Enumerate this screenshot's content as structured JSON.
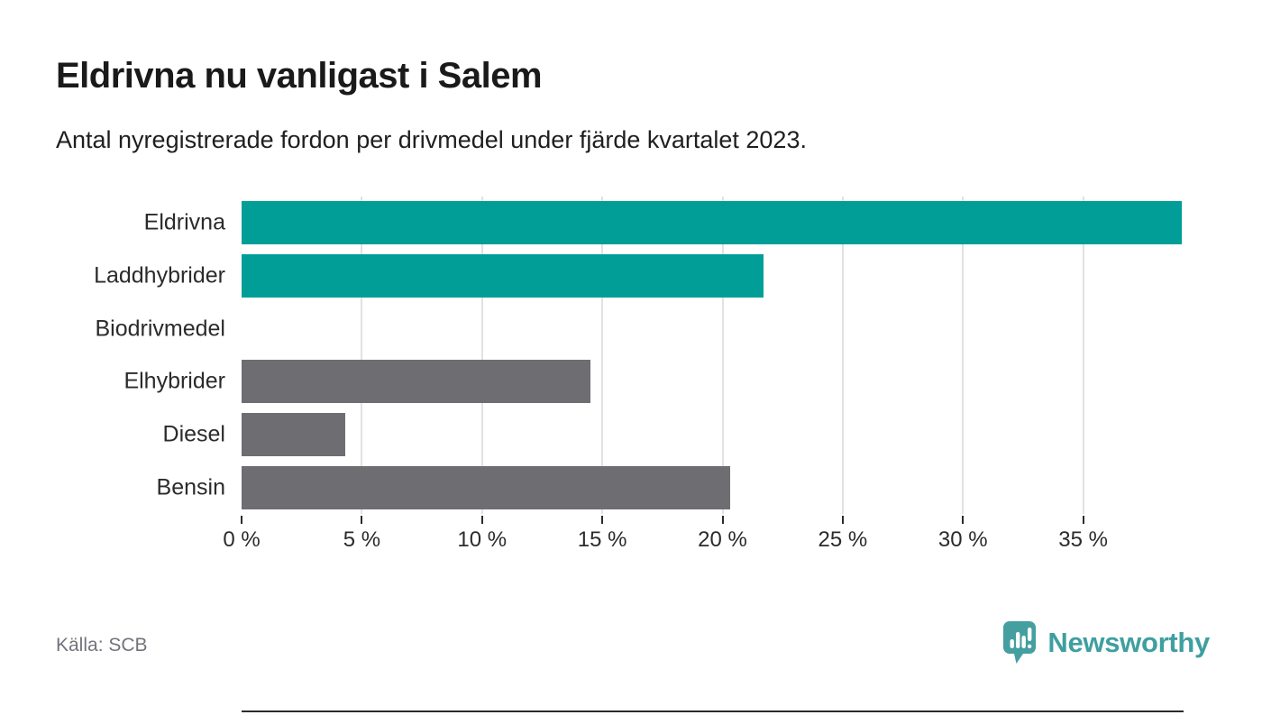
{
  "header": {
    "title": "Eldrivna nu vanligast i Salem",
    "subtitle": "Antal nyregistrerade fordon per drivmedel under fjärde kvartalet 2023."
  },
  "footer": {
    "source": "Källa: SCB",
    "brand": "Newsworthy"
  },
  "colors": {
    "teal": "#009e97",
    "gray": "#6d6d72",
    "axis": "#2b2b2b",
    "gridline": "#e2e2e2",
    "logo_teal": "#459fa0"
  },
  "chart_data": {
    "type": "bar",
    "orientation": "horizontal",
    "title": "Eldrivna nu vanligast i Salem",
    "subtitle": "Antal nyregistrerade fordon per drivmedel under fjärde kvartalet 2023.",
    "categories": [
      "Eldrivna",
      "Laddhybrider",
      "Biodrivmedel",
      "Elhybrider",
      "Diesel",
      "Bensin"
    ],
    "values": [
      39.1,
      21.7,
      0,
      14.5,
      4.3,
      20.3
    ],
    "unit": "%",
    "bar_colors": [
      "#009e97",
      "#009e97",
      "#6d6d72",
      "#6d6d72",
      "#6d6d72",
      "#6d6d72"
    ],
    "xlim": [
      0,
      39.1
    ],
    "tick_step": 5,
    "tick_labels": [
      "0 %",
      "5 %",
      "10 %",
      "15 %",
      "20 %",
      "25 %",
      "30 %",
      "35 %"
    ],
    "tick_values": [
      0,
      5,
      10,
      15,
      20,
      25,
      30,
      35
    ],
    "grid": "vertical",
    "legend": "none"
  }
}
